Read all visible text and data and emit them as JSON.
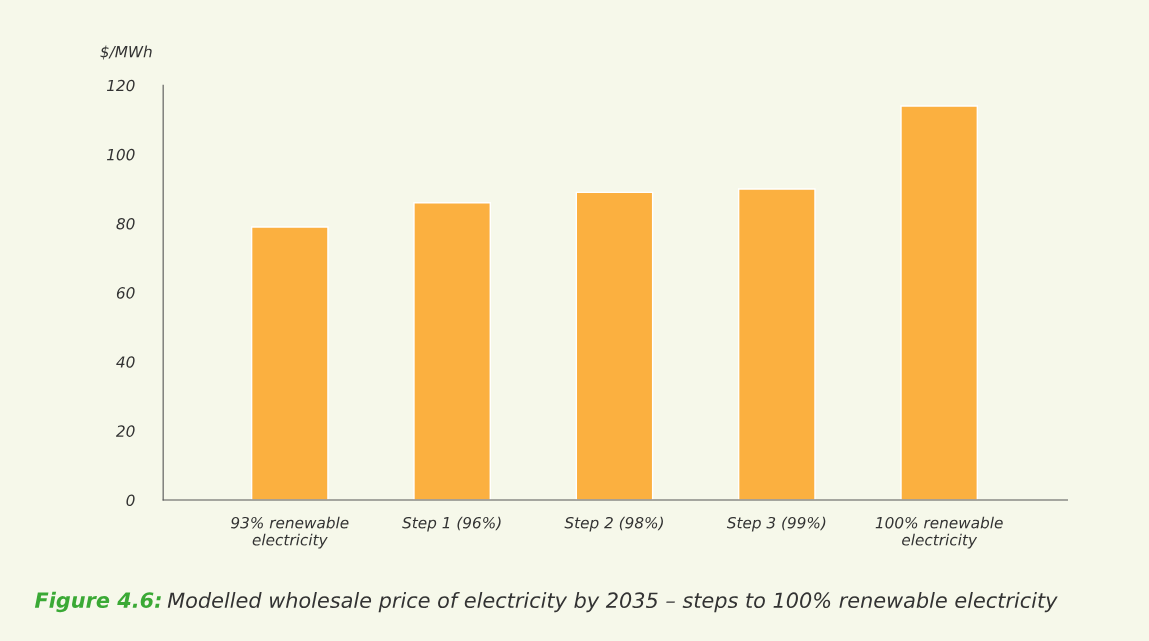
{
  "chart_data": {
    "type": "bar",
    "title": "Figure 4.6:",
    "subtitle": "Modelled wholesale price of electricity by 2035 – steps to 100% renewable electricity",
    "ylabel": "$/MWh",
    "categories": [
      "93% renewable\nelectricity",
      "Step 1 (96%)",
      "Step 2 (98%)",
      "Step 3 (99%)",
      "100% renewable\nelectricity"
    ],
    "values": [
      79,
      86,
      89,
      90,
      114
    ],
    "color": "#fbb040",
    "ylim": [
      0,
      120
    ],
    "yticks": [
      0,
      20,
      40,
      60,
      80,
      100,
      120
    ],
    "grid": false
  }
}
